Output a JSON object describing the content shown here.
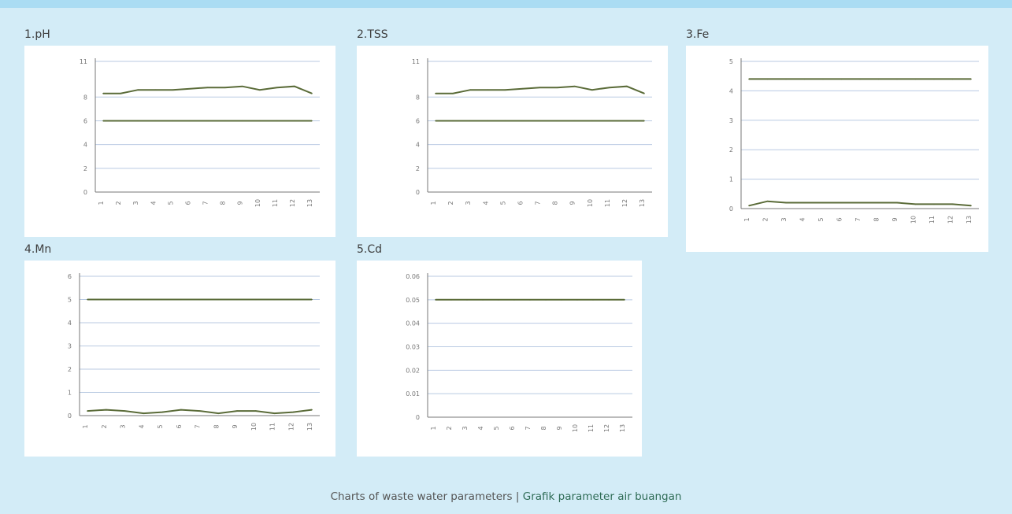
{
  "colors": {
    "background": "#d3ecf7",
    "top_strip": "#aadcf3",
    "gridline": "#b9cae2",
    "axis": "#777777",
    "series_dark": "#5a6b38",
    "series_light": "#9fbb6a",
    "caption_en": "#555555",
    "caption_id": "#2e6b55"
  },
  "caption": {
    "english": "Charts of waste water parameters",
    "separator": "|",
    "indonesian": "Grafik parameter air buangan"
  },
  "chart_data": [
    {
      "title": "1.pH",
      "type": "line",
      "ylabel": "",
      "ylim": [
        0,
        11
      ],
      "yticks": [
        0,
        2,
        4,
        6,
        8,
        11
      ],
      "grid": true,
      "categories": [
        "1",
        "2",
        "3",
        "4",
        "5",
        "6",
        "7",
        "8",
        "9",
        "10",
        "11",
        "12",
        "13"
      ],
      "series": [
        {
          "values": [
            8.3,
            8.3,
            8.6,
            8.6,
            8.6,
            8.7,
            8.8,
            8.8,
            8.9,
            8.6,
            8.8,
            8.9,
            8.3
          ]
        },
        {
          "values": [
            6,
            6,
            6,
            6,
            6,
            6,
            6,
            6,
            6,
            6,
            6,
            6,
            6
          ]
        }
      ]
    },
    {
      "title": "2.TSS",
      "type": "line",
      "ylabel": "",
      "ylim": [
        0,
        11
      ],
      "yticks": [
        0,
        2,
        4,
        6,
        8,
        11
      ],
      "grid": true,
      "categories": [
        "1",
        "2",
        "3",
        "4",
        "5",
        "6",
        "7",
        "8",
        "9",
        "10",
        "11",
        "12",
        "13"
      ],
      "series": [
        {
          "values": [
            8.3,
            8.3,
            8.6,
            8.6,
            8.6,
            8.7,
            8.8,
            8.8,
            8.9,
            8.6,
            8.8,
            8.9,
            8.3
          ]
        },
        {
          "values": [
            6,
            6,
            6,
            6,
            6,
            6,
            6,
            6,
            6,
            6,
            6,
            6,
            6
          ]
        }
      ]
    },
    {
      "title": "3.Fe",
      "type": "line",
      "ylabel": "",
      "ylim": [
        0,
        5
      ],
      "yticks": [
        0,
        1,
        2,
        3,
        4,
        5
      ],
      "grid": true,
      "categories": [
        "1",
        "2",
        "3",
        "4",
        "5",
        "6",
        "7",
        "8",
        "9",
        "10",
        "11",
        "12",
        "13"
      ],
      "series": [
        {
          "values": [
            4.4,
            4.4,
            4.4,
            4.4,
            4.4,
            4.4,
            4.4,
            4.4,
            4.4,
            4.4,
            4.4,
            4.4,
            4.4
          ]
        },
        {
          "values": [
            0.1,
            0.25,
            0.2,
            0.2,
            0.2,
            0.2,
            0.2,
            0.2,
            0.2,
            0.15,
            0.15,
            0.15,
            0.1
          ]
        }
      ]
    },
    {
      "title": "4.Mn",
      "type": "line",
      "ylabel": "",
      "ylim": [
        0,
        6
      ],
      "yticks": [
        0,
        1,
        2,
        3,
        4,
        5,
        6
      ],
      "grid": true,
      "categories": [
        "1",
        "2",
        "3",
        "4",
        "5",
        "6",
        "7",
        "8",
        "9",
        "10",
        "11",
        "12",
        "13"
      ],
      "series": [
        {
          "values": [
            5,
            5,
            5,
            5,
            5,
            5,
            5,
            5,
            5,
            5,
            5,
            5,
            5
          ]
        },
        {
          "values": [
            0.2,
            0.25,
            0.2,
            0.1,
            0.15,
            0.25,
            0.2,
            0.1,
            0.2,
            0.2,
            0.1,
            0.15,
            0.25
          ]
        }
      ]
    },
    {
      "title": "5.Cd",
      "type": "line",
      "ylabel": "",
      "ylim": [
        0,
        0.06
      ],
      "yticks": [
        0,
        0.01,
        0.02,
        0.03,
        0.04,
        0.05,
        0.06
      ],
      "grid": true,
      "categories": [
        "1",
        "2",
        "3",
        "4",
        "5",
        "6",
        "7",
        "8",
        "9",
        "10",
        "11",
        "12",
        "13"
      ],
      "series": [
        {
          "values": [
            0.05,
            0.05,
            0.05,
            0.05,
            0.05,
            0.05,
            0.05,
            0.05,
            0.05,
            0.05,
            0.05,
            0.05,
            0.05
          ]
        }
      ]
    }
  ]
}
